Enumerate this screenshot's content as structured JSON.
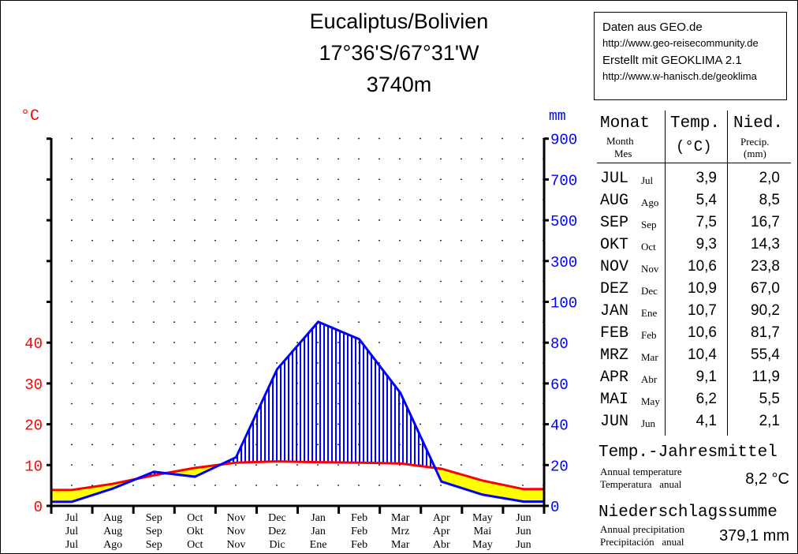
{
  "title": {
    "station": "Eucaliptus/Bolivien",
    "coords": "17°36'S/67°31'W",
    "elevation": "3740m"
  },
  "info": {
    "line1": "Daten aus GEO.de",
    "line2": "http://www.geo-reisecommunity.de",
    "line3": "Erstellt mit GEOKLIMA 2.1",
    "line4": "http://www.w-hanisch.de/geoklima"
  },
  "table": {
    "h_month": "Monat",
    "h_month_en": "Month",
    "h_month_es": "Mes",
    "h_temp": "Temp.",
    "h_temp_unit": "(°C)",
    "h_prec": "Nied.",
    "h_prec_en": "Precip.",
    "h_prec_unit": "(mm)",
    "rows": [
      {
        "de": "JUL",
        "es": "Jul",
        "t": "3,9",
        "p": "2,0"
      },
      {
        "de": "AUG",
        "es": "Ago",
        "t": "5,4",
        "p": "8,5"
      },
      {
        "de": "SEP",
        "es": "Sep",
        "t": "7,5",
        "p": "16,7"
      },
      {
        "de": "OKT",
        "es": "Oct",
        "t": "9,3",
        "p": "14,3"
      },
      {
        "de": "NOV",
        "es": "Nov",
        "t": "10,6",
        "p": "23,8"
      },
      {
        "de": "DEZ",
        "es": "Dec",
        "t": "10,9",
        "p": "67,0"
      },
      {
        "de": "JAN",
        "es": "Ene",
        "t": "10,7",
        "p": "90,2"
      },
      {
        "de": "FEB",
        "es": "Feb",
        "t": "10,6",
        "p": "81,7"
      },
      {
        "de": "MRZ",
        "es": "Mar",
        "t": "10,4",
        "p": "55,4"
      },
      {
        "de": "APR",
        "es": "Abr",
        "t": "9,1",
        "p": "11,9"
      },
      {
        "de": "MAI",
        "es": "May",
        "t": "6,2",
        "p": "5,5"
      },
      {
        "de": "JUN",
        "es": "Jun",
        "t": "4,1",
        "p": "2,1"
      }
    ]
  },
  "summary": {
    "temp_title": "Temp.-Jahresmittel",
    "temp_en": "Annual temperature",
    "temp_es": "Temperatura   anual",
    "temp_value": "8,2 °C",
    "prec_title": "Niederschlagssumme",
    "prec_en": "Annual precipitation",
    "prec_es": "Precipitación   anual",
    "prec_value": "379,1 mm"
  },
  "chart_data": {
    "type": "climate-diagram",
    "left_axis_label": "°C",
    "right_axis_label": "mm",
    "left_ticks": [
      "0",
      "10",
      "20",
      "30",
      "40"
    ],
    "right_ticks": [
      "0",
      "20",
      "40",
      "60",
      "80",
      "100",
      "300",
      "500",
      "700",
      "900"
    ],
    "categories_en": [
      "Jul",
      "Aug",
      "Sep",
      "Oct",
      "Nov",
      "Dec",
      "Jan",
      "Feb",
      "Mar",
      "Apr",
      "May",
      "Jun"
    ],
    "categories_de": [
      "Jul",
      "Aug",
      "Sep",
      "Okt",
      "Nov",
      "Dez",
      "Jan",
      "Feb",
      "Mrz",
      "Apr",
      "Mai",
      "Jun"
    ],
    "categories_es": [
      "Jul",
      "Ago",
      "Sep",
      "Oct",
      "Nov",
      "Dic",
      "Ene",
      "Feb",
      "Mar",
      "Abr",
      "May",
      "Jun"
    ],
    "temperature": [
      3.9,
      5.4,
      7.5,
      9.3,
      10.6,
      10.9,
      10.7,
      10.6,
      10.4,
      9.1,
      6.2,
      4.1
    ],
    "precipitation": [
      2.0,
      8.5,
      16.7,
      14.3,
      23.8,
      67.0,
      90.2,
      81.7,
      55.4,
      11.9,
      5.5,
      2.1
    ],
    "colors": {
      "temperature": "#ff0000",
      "precipitation": "#0000ff",
      "arid": "#ffff00",
      "humid": "#0000ff",
      "left_axis": "#ff0000",
      "right_axis": "#0000ff"
    },
    "temp_ylim": [
      0,
      50
    ],
    "precip_scale": "20 mm = 10 °C up to 100 mm, compressed 1:10 above",
    "grid": "dotted"
  }
}
